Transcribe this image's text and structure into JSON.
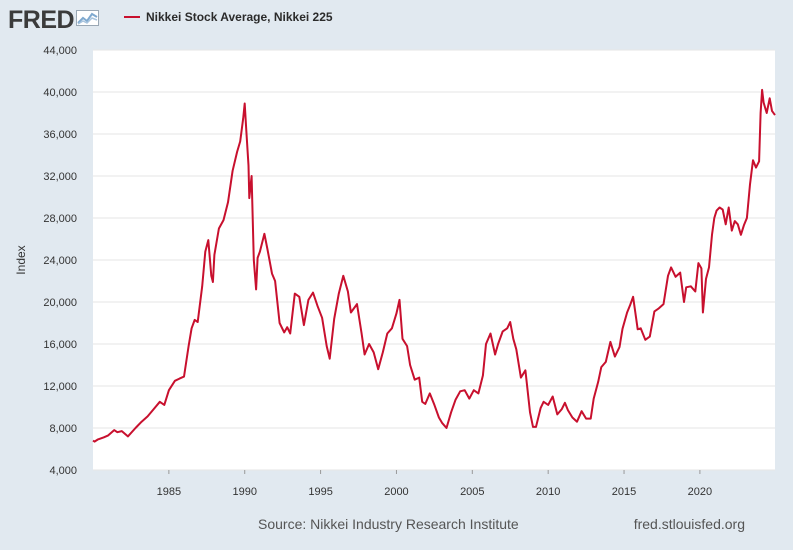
{
  "logo": {
    "text": "FRED",
    "icon": "line-chart-icon"
  },
  "colors": {
    "series": "#c8102e",
    "background": "#e1e9f0",
    "plot": "#ffffff",
    "grid": "#e6e6e6"
  },
  "chart_data": {
    "type": "line",
    "title": "",
    "xlabel": "",
    "ylabel": "Index",
    "xlim": [
      1980.0,
      2024.95
    ],
    "ylim": [
      4000,
      44000
    ],
    "x_ticks": [
      1985,
      1990,
      1995,
      2000,
      2005,
      2010,
      2015,
      2020
    ],
    "x_tick_labels": [
      "1985",
      "1990",
      "1995",
      "2000",
      "2005",
      "2010",
      "2015",
      "2020"
    ],
    "y_ticks": [
      4000,
      8000,
      12000,
      16000,
      20000,
      24000,
      28000,
      32000,
      36000,
      40000,
      44000
    ],
    "y_tick_labels": [
      "4,000",
      "8,000",
      "12,000",
      "16,000",
      "20,000",
      "24,000",
      "28,000",
      "32,000",
      "36,000",
      "40,000",
      "44,000"
    ],
    "grid": true,
    "legend_position": "top-left",
    "series": [
      {
        "name": "Nikkei Stock Average, Nikkei 225",
        "x": [
          1980.0,
          1980.1,
          1980.3,
          1980.7,
          1981.0,
          1981.4,
          1981.6,
          1981.9,
          1982.3,
          1982.8,
          1983.2,
          1983.6,
          1984.0,
          1984.4,
          1984.7,
          1985.0,
          1985.4,
          1985.7,
          1986.0,
          1986.3,
          1986.5,
          1986.7,
          1986.9,
          1987.2,
          1987.4,
          1987.6,
          1987.8,
          1987.9,
          1988.0,
          1988.3,
          1988.6,
          1988.9,
          1989.2,
          1989.5,
          1989.7,
          1989.9,
          1990.0,
          1990.1,
          1990.25,
          1990.3,
          1990.45,
          1990.6,
          1990.75,
          1990.85,
          1991.0,
          1991.3,
          1991.5,
          1991.8,
          1992.0,
          1992.3,
          1992.6,
          1992.8,
          1993.0,
          1993.3,
          1993.6,
          1993.9,
          1994.2,
          1994.5,
          1994.8,
          1995.1,
          1995.4,
          1995.6,
          1995.9,
          1996.2,
          1996.5,
          1996.8,
          1997.0,
          1997.4,
          1997.7,
          1997.9,
          1998.2,
          1998.5,
          1998.8,
          1999.1,
          1999.4,
          1999.7,
          2000.0,
          2000.2,
          2000.4,
          2000.7,
          2000.9,
          2001.2,
          2001.5,
          2001.7,
          2001.9,
          2002.2,
          2002.5,
          2002.8,
          2003.0,
          2003.3,
          2003.6,
          2003.9,
          2004.2,
          2004.5,
          2004.8,
          2005.1,
          2005.4,
          2005.7,
          2005.9,
          2006.2,
          2006.5,
          2006.7,
          2007.0,
          2007.3,
          2007.5,
          2007.7,
          2007.9,
          2008.2,
          2008.5,
          2008.8,
          2009.0,
          2009.2,
          2009.5,
          2009.7,
          2010.0,
          2010.3,
          2010.6,
          2010.9,
          2011.1,
          2011.3,
          2011.6,
          2011.9,
          2012.2,
          2012.5,
          2012.8,
          2013.0,
          2013.3,
          2013.5,
          2013.8,
          2014.1,
          2014.4,
          2014.7,
          2014.9,
          2015.2,
          2015.4,
          2015.6,
          2015.9,
          2016.1,
          2016.4,
          2016.7,
          2017.0,
          2017.3,
          2017.6,
          2017.9,
          2018.1,
          2018.4,
          2018.7,
          2018.95,
          2019.1,
          2019.4,
          2019.7,
          2019.9,
          2020.1,
          2020.2,
          2020.4,
          2020.6,
          2020.8,
          2020.95,
          2021.1,
          2021.3,
          2021.5,
          2021.7,
          2021.9,
          2022.1,
          2022.3,
          2022.5,
          2022.7,
          2022.9,
          2023.1,
          2023.3,
          2023.5,
          2023.7,
          2023.9,
          2024.0,
          2024.1,
          2024.2,
          2024.4,
          2024.6,
          2024.75,
          2024.95
        ],
        "y": [
          6800,
          6700,
          6900,
          7100,
          7300,
          7800,
          7600,
          7700,
          7200,
          8000,
          8600,
          9100,
          9800,
          10500,
          10200,
          11600,
          12500,
          12700,
          12900,
          15800,
          17500,
          18300,
          18100,
          21500,
          24800,
          25900,
          22500,
          21900,
          24500,
          27000,
          27800,
          29500,
          32500,
          34300,
          35300,
          37500,
          38900,
          36500,
          33000,
          29900,
          32000,
          24000,
          21200,
          24200,
          24800,
          26500,
          25000,
          22700,
          22000,
          18000,
          17100,
          17600,
          17000,
          20800,
          20500,
          17800,
          20200,
          20900,
          19600,
          18500,
          15800,
          14600,
          18400,
          20800,
          22500,
          21000,
          19000,
          19800,
          17000,
          15000,
          16000,
          15200,
          13600,
          15200,
          17000,
          17500,
          18900,
          20200,
          16500,
          15800,
          14000,
          12600,
          12800,
          10500,
          10300,
          11300,
          10200,
          9000,
          8500,
          8000,
          9500,
          10700,
          11500,
          11600,
          10800,
          11600,
          11300,
          13000,
          16000,
          17000,
          15000,
          16000,
          17200,
          17500,
          18100,
          16500,
          15500,
          12800,
          13500,
          9500,
          8100,
          8100,
          9900,
          10500,
          10200,
          11000,
          9300,
          9800,
          10400,
          9700,
          9000,
          8600,
          9600,
          8900,
          8900,
          10800,
          12400,
          13800,
          14300,
          16200,
          14800,
          15700,
          17450,
          19000,
          19700,
          20500,
          17400,
          17500,
          16400,
          16700,
          19100,
          19400,
          19800,
          22500,
          23300,
          22400,
          22800,
          20000,
          21400,
          21500,
          21000,
          23700,
          23200,
          19000,
          22200,
          23300,
          26400,
          28000,
          28700,
          29000,
          28800,
          27400,
          29000,
          26800,
          27700,
          27400,
          26400,
          27300,
          28000,
          31200,
          33500,
          32800,
          33400,
          38000,
          40200,
          39000,
          38000,
          39400,
          38200,
          37800
        ]
      }
    ],
    "source": "Source: Nikkei Industry Research Institute",
    "credit": "fred.stlouisfed.org"
  }
}
